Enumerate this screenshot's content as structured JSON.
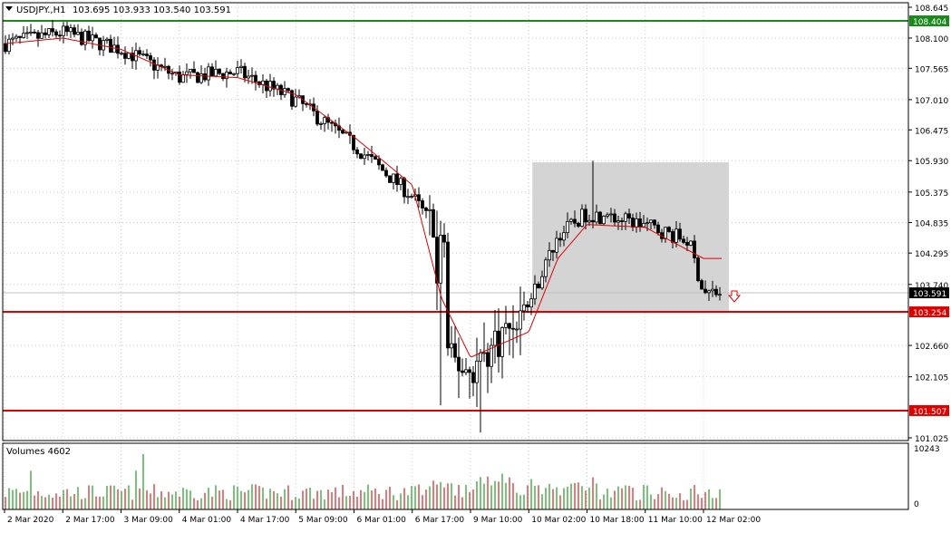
{
  "header": {
    "symbol_label": "USDJPY.,H1",
    "ohlc": "103.695 103.933 103.540 103.591"
  },
  "volume_panel": {
    "label": "Volumes 4602",
    "axis_max": "10243",
    "axis_zero": "0"
  },
  "colors": {
    "background": "#ffffff",
    "grid": "#c8c8c8",
    "candle": "#000000",
    "ma": "#e00000",
    "support": "#e00000",
    "resistance": "#1a8a1a",
    "shaded_zone": "#d4d4d4",
    "volume_up": "#1f9d1f",
    "volume_down": "#d22020",
    "price_tag": "#000000"
  },
  "chart_data": {
    "type": "candlestick",
    "symbol": "USDJPY",
    "timeframe": "H1",
    "ylim": [
      101.025,
      108.645
    ],
    "y_ticks": [
      "108.645",
      "108.100",
      "107.565",
      "107.010",
      "106.475",
      "105.930",
      "105.375",
      "104.835",
      "104.295",
      "103.740",
      "102.660",
      "102.105",
      "101.025"
    ],
    "x_ticks": [
      "2 Mar 2020",
      "2 Mar 17:00",
      "3 Mar 09:00",
      "4 Mar 01:00",
      "4 Mar 17:00",
      "5 Mar 09:00",
      "6 Mar 01:00",
      "6 Mar 17:00",
      "9 Mar 10:00",
      "10 Mar 02:00",
      "10 Mar 18:00",
      "11 Mar 10:00",
      "12 Mar 02:00"
    ],
    "current_price": "103.591",
    "levels": [
      {
        "name": "resistance",
        "price": 108.404,
        "label": "108.404"
      },
      {
        "name": "support",
        "price": 103.254,
        "label": "103.254"
      },
      {
        "name": "support-low",
        "price": 101.507,
        "label": "101.507"
      }
    ],
    "zone": {
      "start_tick": "10 Mar 02:00",
      "end_tick": "12 Mar 02:00",
      "top": 105.9,
      "bottom": 103.254
    },
    "close_path": [
      {
        "t": "2 Mar 2020",
        "v": 108.0
      },
      {
        "t": "2 Mar 17:00",
        "v": 108.2
      },
      {
        "t": "3 Mar 09:00",
        "v": 107.9
      },
      {
        "t": "4 Mar 01:00",
        "v": 107.4
      },
      {
        "t": "4 Mar 17:00",
        "v": 107.5
      },
      {
        "t": "5 Mar 09:00",
        "v": 107.0
      },
      {
        "t": "6 Mar 01:00",
        "v": 106.2
      },
      {
        "t": "6 Mar 17:00",
        "v": 105.3
      },
      {
        "t": "6 Mar 23:00",
        "v": 104.4
      },
      {
        "t": "9 Mar 02:00",
        "v": 102.5
      },
      {
        "t": "9 Mar 10:00",
        "v": 102.2
      },
      {
        "t": "10 Mar 02:00",
        "v": 103.4
      },
      {
        "t": "10 Mar 10:00",
        "v": 104.6
      },
      {
        "t": "10 Mar 18:00",
        "v": 105.0
      },
      {
        "t": "11 Mar 10:00",
        "v": 104.8
      },
      {
        "t": "11 Mar 22:00",
        "v": 104.5
      },
      {
        "t": "12 Mar 02:00",
        "v": 103.591
      }
    ],
    "ma_path": [
      {
        "t": "2 Mar 2020",
        "v": 108.0
      },
      {
        "t": "2 Mar 17:00",
        "v": 108.1
      },
      {
        "t": "3 Mar 09:00",
        "v": 107.9
      },
      {
        "t": "4 Mar 01:00",
        "v": 107.45
      },
      {
        "t": "4 Mar 17:00",
        "v": 107.4
      },
      {
        "t": "5 Mar 09:00",
        "v": 107.1
      },
      {
        "t": "6 Mar 01:00",
        "v": 106.35
      },
      {
        "t": "6 Mar 17:00",
        "v": 105.5
      },
      {
        "t": "9 Mar 02:00",
        "v": 103.5
      },
      {
        "t": "9 Mar 10:00",
        "v": 102.45
      },
      {
        "t": "10 Mar 02:00",
        "v": 102.9
      },
      {
        "t": "10 Mar 10:00",
        "v": 104.2
      },
      {
        "t": "10 Mar 18:00",
        "v": 104.8
      },
      {
        "t": "11 Mar 10:00",
        "v": 104.75
      },
      {
        "t": "12 Mar 02:00",
        "v": 104.2
      }
    ]
  }
}
